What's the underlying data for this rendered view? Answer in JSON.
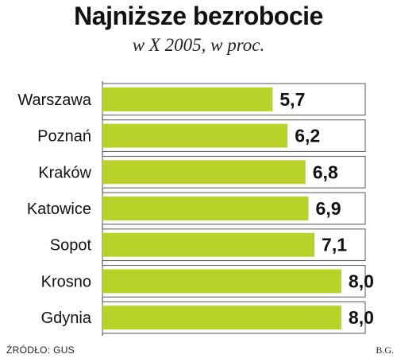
{
  "chart_data": {
    "type": "bar",
    "orientation": "horizontal",
    "title": "Najniższe bezrobocie",
    "subtitle": "w X 2005, w proc.",
    "categories": [
      "Warszawa",
      "Poznań",
      "Kraków",
      "Katowice",
      "Sopot",
      "Krosno",
      "Gdynia"
    ],
    "values": [
      5.7,
      6.2,
      6.8,
      6.9,
      7.1,
      8.0,
      8.0
    ],
    "value_labels": [
      "5,7",
      "6,2",
      "6,8",
      "6,9",
      "7,1",
      "8,0",
      "8,0"
    ],
    "xlim": [
      0,
      8.8
    ],
    "grid": false,
    "bar_color": "#b9d229"
  },
  "footer": {
    "source": "ŹRÓDŁO: GUS",
    "author": "B.G."
  }
}
